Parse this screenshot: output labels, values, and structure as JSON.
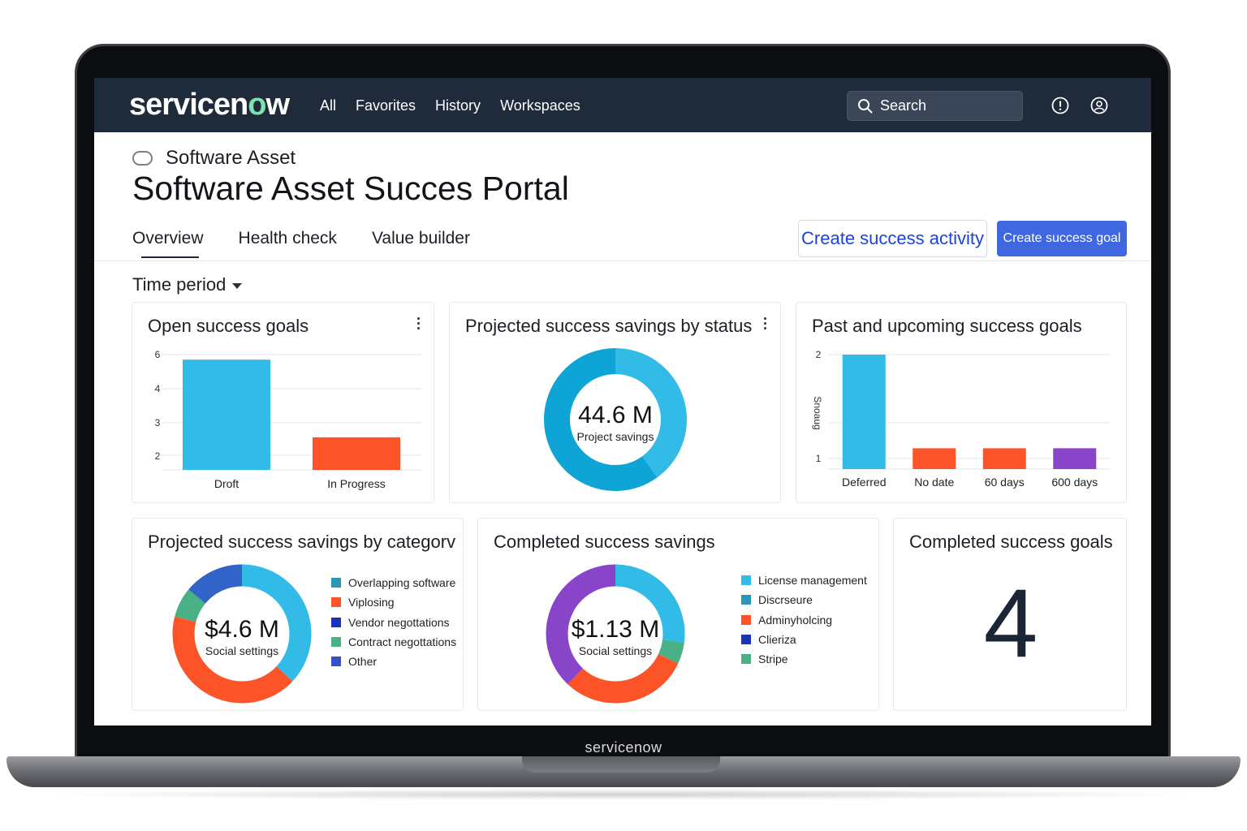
{
  "bezel_logo": "servicenow",
  "nav": {
    "brand": "servicenow",
    "links": [
      "All",
      "Favorites",
      "History",
      "Workspaces"
    ],
    "search_label": "Search"
  },
  "header": {
    "breadcrumb": "Software Asset",
    "title": "Software Asset Succes Portal"
  },
  "tabs": [
    "Overview",
    "Health check",
    "Value builder"
  ],
  "active_tab": "Overview",
  "actions": {
    "create_activity": "Create success activity",
    "create_goal": "Create success goal"
  },
  "filter": {
    "time_period": "Time period"
  },
  "colors": {
    "nav_bg": "#1f2a3a",
    "primary": "#3f67e0",
    "link": "#1a44d9",
    "cyan": "#33bbe8",
    "orange": "#fc5428",
    "purple": "#8845c9",
    "teal": "#2c96b7",
    "green": "#4ab186",
    "navy": "#1835b8",
    "blue": "#3163c9"
  },
  "cards": {
    "open_goals": {
      "title": "Open success goals",
      "chart_data": {
        "type": "bar",
        "title": "Open success goals",
        "categories": [
          "Droft",
          "In Progress"
        ],
        "values": [
          5.8,
          2.7
        ],
        "ytick_labels": [
          "6",
          "4",
          "3",
          "2"
        ],
        "ylim": [
          1.4,
          6
        ],
        "colors": [
          "#33bbe8",
          "#fc5428"
        ],
        "grid": true
      }
    },
    "savings_by_status": {
      "title": "Projected success savings by status",
      "value": "44.6 M",
      "sublabel": "Project savings",
      "chart_data": {
        "type": "pie",
        "donut": true,
        "values": [
          40,
          60
        ],
        "colors": [
          "#33bbe8",
          "#0ea5d6"
        ]
      }
    },
    "past_upcoming": {
      "title": "Past and upcoming success goals",
      "ylabel": "Snoaug",
      "chart_data": {
        "type": "bar",
        "title": "Past and upcoming success goals",
        "categories": [
          "Deferred",
          "No date",
          "60 days",
          "600 days"
        ],
        "values": [
          2,
          1.1,
          1.1,
          1.1
        ],
        "ytick_labels": [
          "2",
          "1"
        ],
        "ylim": [
          0.9,
          2
        ],
        "colors": [
          "#33bbe8",
          "#fc5428",
          "#fc5428",
          "#8845c9"
        ],
        "grid": true
      }
    },
    "savings_by_category": {
      "title": "Projected success savings by categorv",
      "value": "$4.6 M",
      "sublabel": "Social settings",
      "legend": [
        {
          "label": "Overlapping software",
          "color": "#2c96b7"
        },
        {
          "label": "Viplosing",
          "color": "#fc5428"
        },
        {
          "label": "Vendor negottations",
          "color": "#1835b8"
        },
        {
          "label": "Contract negottations",
          "color": "#4ab186"
        },
        {
          "label": "Other",
          "color": "#3550c8"
        }
      ],
      "chart_data": {
        "type": "pie",
        "donut": true,
        "values": [
          37,
          42,
          7,
          14
        ],
        "colors": [
          "#33bbe8",
          "#fc5428",
          "#4ab186",
          "#3163c9"
        ]
      }
    },
    "completed_savings": {
      "title": "Completed success savings",
      "value": "$1.13 M",
      "sublabel": "Social settings",
      "legend": [
        {
          "label": "License management",
          "color": "#33bbe8"
        },
        {
          "label": "Discrseure",
          "color": "#2c96b7"
        },
        {
          "label": "Adminyholcing",
          "color": "#fc5428"
        },
        {
          "label": "Clieriza",
          "color": "#1835b8"
        },
        {
          "label": "Stripe",
          "color": "#4ab186"
        }
      ],
      "chart_data": {
        "type": "pie",
        "donut": true,
        "values": [
          27,
          5,
          30,
          38
        ],
        "colors": [
          "#33bbe8",
          "#4ab186",
          "#fc5428",
          "#8845c9"
        ]
      }
    },
    "completed_goals": {
      "title": "Completed success goals",
      "value": "4"
    }
  }
}
